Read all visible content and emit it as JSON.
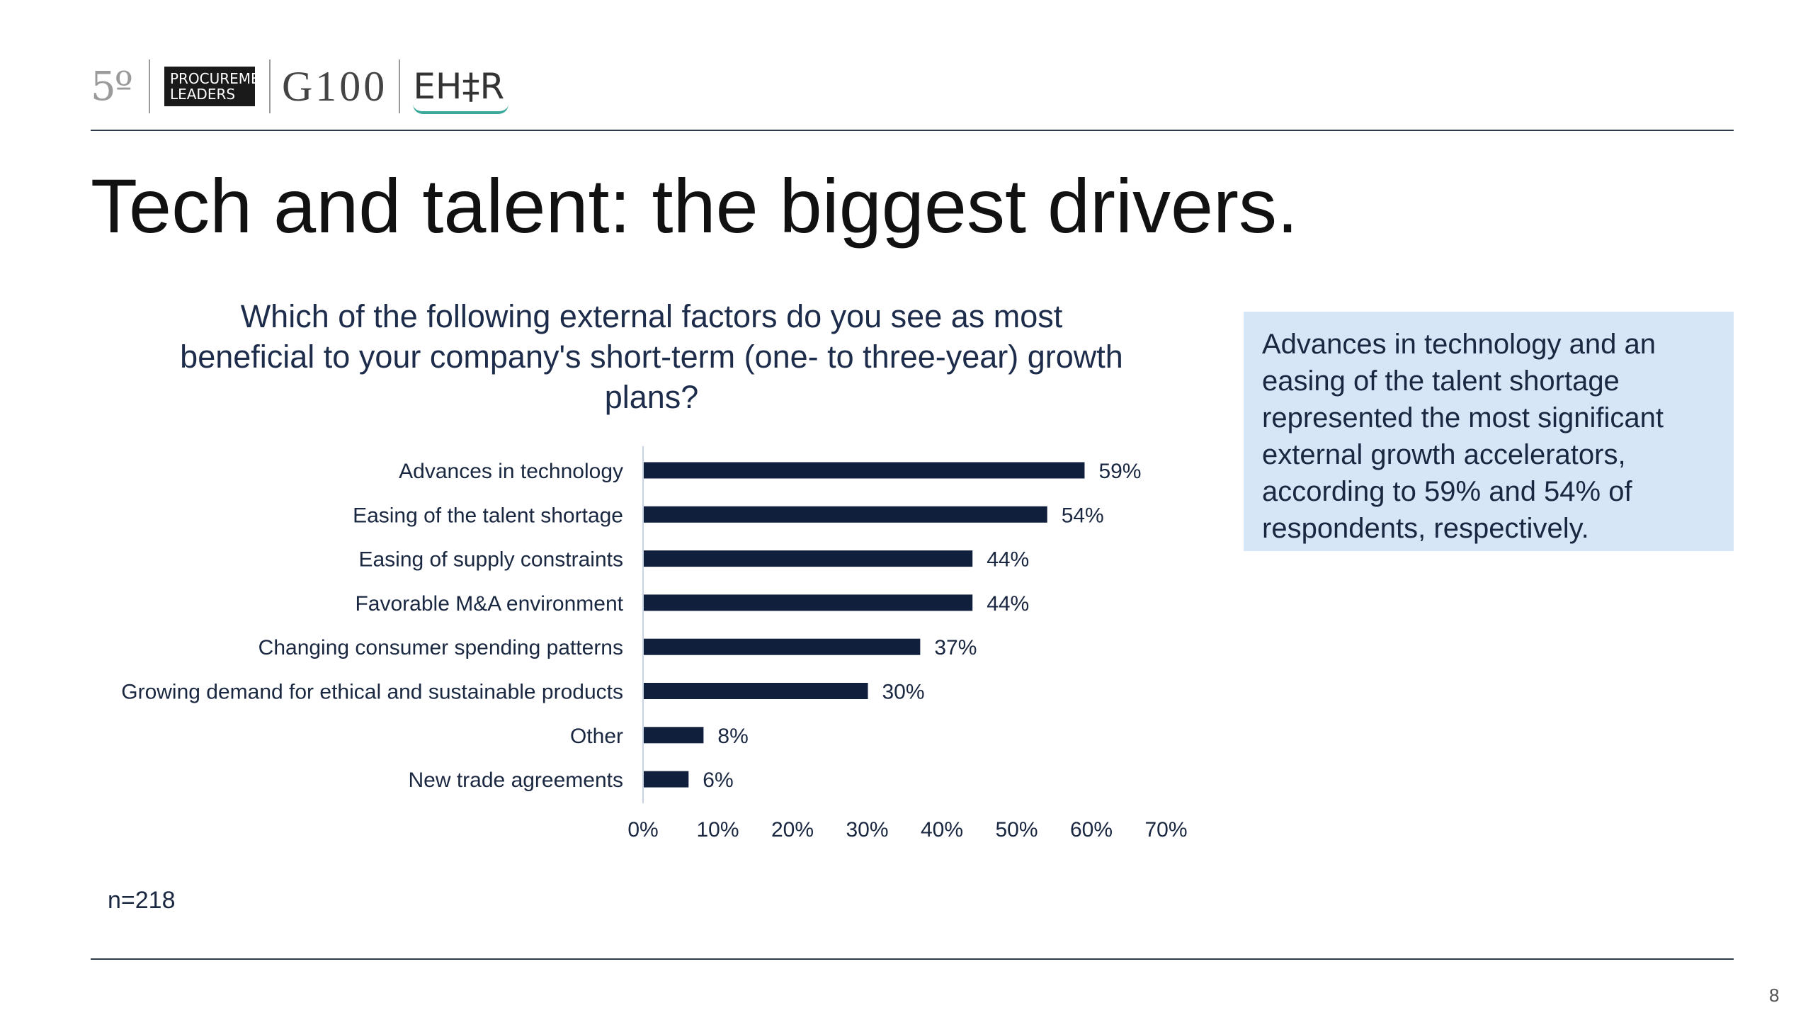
{
  "header": {
    "logos": {
      "fifty": "5º",
      "procurement_line1": "PROCUREMENT",
      "procurement_line2": "LEADERS",
      "g100": "G100",
      "ehir": "EH‡R"
    }
  },
  "title": "Tech and talent: the biggest drivers.",
  "chart_title": "Which of the following external factors do you see as most beneficial to your company's short-term (one- to three-year) growth plans?",
  "callout": "Advances in technology and an easing of the talent shortage represented the most significant external growth accelerators, according to 59% and 54% of respondents, respectively.",
  "footnote": "n=218",
  "page_number": "8",
  "chart_data": {
    "type": "bar",
    "orientation": "horizontal",
    "categories": [
      "Advances in technology",
      "Easing of the talent shortage",
      "Easing of supply constraints",
      "Favorable M&A environment",
      "Changing consumer spending patterns",
      "Growing demand for ethical and sustainable products",
      "Other",
      "New trade agreements"
    ],
    "values": [
      59,
      54,
      44,
      44,
      37,
      30,
      8,
      6
    ],
    "value_labels": [
      "59%",
      "54%",
      "44%",
      "44%",
      "37%",
      "30%",
      "8%",
      "6%"
    ],
    "xlim": [
      0,
      70
    ],
    "x_ticks": [
      "0%",
      "10%",
      "20%",
      "30%",
      "40%",
      "50%",
      "60%",
      "70%"
    ],
    "bar_color": "#0f1f3c",
    "grid": false,
    "legend": "none"
  }
}
